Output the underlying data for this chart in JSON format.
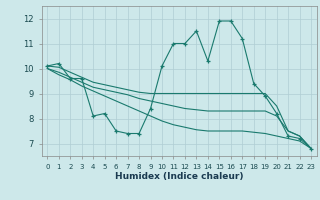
{
  "xlabel": "Humidex (Indice chaleur)",
  "x": [
    0,
    1,
    2,
    3,
    4,
    5,
    6,
    7,
    8,
    9,
    10,
    11,
    12,
    13,
    14,
    15,
    16,
    17,
    18,
    19,
    20,
    21,
    22,
    23
  ],
  "line1": [
    10.1,
    10.2,
    9.6,
    9.6,
    8.1,
    8.2,
    7.5,
    7.4,
    7.4,
    8.4,
    10.1,
    11.0,
    11.0,
    11.5,
    10.3,
    11.9,
    11.9,
    11.2,
    9.4,
    8.9,
    8.2,
    7.3,
    7.2,
    6.8
  ],
  "line2": [
    10.1,
    10.05,
    9.85,
    9.65,
    9.45,
    9.35,
    9.25,
    9.15,
    9.05,
    9.0,
    9.0,
    9.0,
    9.0,
    9.0,
    9.0,
    9.0,
    9.0,
    9.0,
    9.0,
    9.0,
    8.5,
    7.5,
    7.3,
    6.8
  ],
  "line3": [
    10.0,
    9.85,
    9.65,
    9.45,
    9.25,
    9.15,
    9.05,
    8.95,
    8.8,
    8.7,
    8.6,
    8.5,
    8.4,
    8.35,
    8.3,
    8.3,
    8.3,
    8.3,
    8.3,
    8.3,
    8.1,
    7.5,
    7.3,
    6.8
  ],
  "line4": [
    10.0,
    9.75,
    9.55,
    9.3,
    9.1,
    8.9,
    8.7,
    8.5,
    8.3,
    8.1,
    7.9,
    7.75,
    7.65,
    7.55,
    7.5,
    7.5,
    7.5,
    7.5,
    7.45,
    7.4,
    7.3,
    7.2,
    7.1,
    6.8
  ],
  "line_color": "#1a7a6e",
  "bg_color": "#cde8ea",
  "grid_color": "#b0ced4",
  "ylim": [
    6.5,
    12.5
  ],
  "yticks": [
    7,
    8,
    9,
    10,
    11,
    12
  ],
  "xlim": [
    -0.5,
    23.5
  ]
}
